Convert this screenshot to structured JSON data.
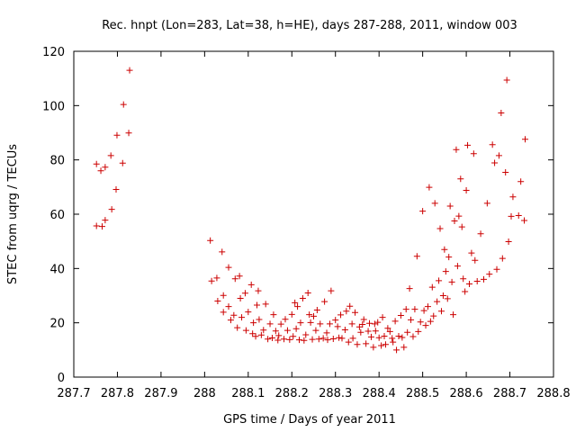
{
  "chart_data": {
    "type": "scatter",
    "title": "Rec. hnpt (Lon=283, Lat=38, h=HE), days 287-288, 2011, window 003",
    "xlabel": "GPS time / Days of year 2011",
    "ylabel": "STEC from uqrg / TECUs",
    "xlim": [
      287.7,
      288.8
    ],
    "ylim": [
      0,
      120
    ],
    "x_ticks": [
      287.7,
      287.8,
      287.9,
      288.0,
      288.1,
      288.2,
      288.3,
      288.4,
      288.5,
      288.6,
      288.7,
      288.8
    ],
    "x_tick_labels": [
      "287.7",
      "287.8",
      "287.9",
      "288",
      "288.1",
      "288.2",
      "288.3",
      "288.4",
      "288.5",
      "288.6",
      "288.7",
      "288.8"
    ],
    "y_ticks": [
      0,
      20,
      40,
      60,
      80,
      100,
      120
    ],
    "y_tick_labels": [
      "0",
      "20",
      "40",
      "60",
      "80",
      "100",
      "120"
    ],
    "grid": false,
    "marker": "+",
    "marker_color": "#cc0000",
    "series": [
      {
        "points": [
          [
            287.752,
            78.5
          ],
          [
            287.752,
            55.7
          ],
          [
            287.762,
            76.0
          ],
          [
            287.765,
            55.5
          ],
          [
            287.772,
            77.3
          ],
          [
            287.772,
            57.8
          ],
          [
            287.785,
            81.6
          ],
          [
            287.787,
            61.8
          ],
          [
            287.797,
            69.1
          ],
          [
            287.799,
            89.1
          ],
          [
            287.812,
            78.8
          ],
          [
            287.814,
            100.4
          ],
          [
            287.826,
            89.9
          ],
          [
            287.828,
            113.0
          ],
          [
            288.013,
            50.3
          ],
          [
            288.016,
            35.4
          ],
          [
            288.028,
            36.5
          ],
          [
            288.03,
            28.0
          ],
          [
            288.04,
            46.1
          ],
          [
            288.043,
            23.9
          ],
          [
            288.043,
            30.1
          ],
          [
            288.055,
            26.0
          ],
          [
            288.055,
            40.4
          ],
          [
            288.06,
            21.0
          ],
          [
            288.067,
            22.8
          ],
          [
            288.07,
            36.2
          ],
          [
            288.075,
            18.2
          ],
          [
            288.08,
            37.2
          ],
          [
            288.082,
            29.0
          ],
          [
            288.085,
            22.0
          ],
          [
            288.093,
            30.9
          ],
          [
            288.095,
            17.2
          ],
          [
            288.1,
            24.0
          ],
          [
            288.107,
            34.0
          ],
          [
            288.11,
            16.0
          ],
          [
            288.112,
            20.0
          ],
          [
            288.117,
            15.0
          ],
          [
            288.12,
            26.5
          ],
          [
            288.123,
            31.8
          ],
          [
            288.125,
            21.2
          ],
          [
            288.13,
            15.5
          ],
          [
            288.135,
            17.3
          ],
          [
            288.14,
            26.9
          ],
          [
            288.145,
            14.0
          ],
          [
            288.15,
            19.6
          ],
          [
            288.155,
            14.4
          ],
          [
            288.158,
            23.0
          ],
          [
            288.163,
            17.0
          ],
          [
            288.168,
            13.6
          ],
          [
            288.17,
            15.3
          ],
          [
            288.175,
            19.5
          ],
          [
            288.182,
            14.0
          ],
          [
            288.185,
            21.3
          ],
          [
            288.19,
            17.2
          ],
          [
            288.195,
            13.8
          ],
          [
            288.2,
            23.1
          ],
          [
            288.203,
            15.0
          ],
          [
            288.207,
            27.4
          ],
          [
            288.21,
            17.8
          ],
          [
            288.213,
            26.0
          ],
          [
            288.217,
            13.7
          ],
          [
            288.22,
            20.0
          ],
          [
            288.225,
            29.0
          ],
          [
            288.228,
            13.5
          ],
          [
            288.232,
            15.6
          ],
          [
            288.237,
            31.0
          ],
          [
            288.24,
            23.0
          ],
          [
            288.243,
            20.1
          ],
          [
            288.247,
            13.9
          ],
          [
            288.25,
            22.4
          ],
          [
            288.255,
            17.2
          ],
          [
            288.258,
            24.7
          ],
          [
            288.262,
            14.0
          ],
          [
            288.265,
            19.6
          ],
          [
            288.272,
            14.3
          ],
          [
            288.275,
            27.8
          ],
          [
            288.28,
            16.3
          ],
          [
            288.282,
            13.7
          ],
          [
            288.287,
            19.6
          ],
          [
            288.29,
            31.8
          ],
          [
            288.295,
            14.1
          ],
          [
            288.3,
            21.0
          ],
          [
            288.305,
            18.6
          ],
          [
            288.308,
            14.5
          ],
          [
            288.312,
            22.9
          ],
          [
            288.315,
            14.3
          ],
          [
            288.322,
            17.4
          ],
          [
            288.325,
            24.3
          ],
          [
            288.33,
            12.9
          ],
          [
            288.333,
            26.1
          ],
          [
            288.338,
            19.6
          ],
          [
            288.34,
            14.3
          ],
          [
            288.345,
            23.8
          ],
          [
            288.35,
            12.0
          ],
          [
            288.355,
            18.5
          ],
          [
            288.358,
            16.5
          ],
          [
            288.362,
            19.4
          ],
          [
            288.365,
            21.2
          ],
          [
            288.37,
            12.3
          ],
          [
            288.375,
            16.9
          ],
          [
            288.378,
            19.8
          ],
          [
            288.382,
            14.8
          ],
          [
            288.387,
            11.0
          ],
          [
            288.39,
            19.6
          ],
          [
            288.392,
            17.0
          ],
          [
            288.397,
            20.2
          ],
          [
            288.4,
            14.5
          ],
          [
            288.405,
            11.6
          ],
          [
            288.408,
            22.0
          ],
          [
            288.412,
            15.1
          ],
          [
            288.415,
            12.0
          ],
          [
            288.42,
            18.0
          ],
          [
            288.425,
            16.8
          ],
          [
            288.43,
            14.3
          ],
          [
            288.432,
            12.9
          ],
          [
            288.437,
            20.6
          ],
          [
            288.44,
            10.0
          ],
          [
            288.445,
            15.1
          ],
          [
            288.45,
            22.7
          ],
          [
            288.453,
            14.6
          ],
          [
            288.457,
            11.0
          ],
          [
            288.462,
            25.0
          ],
          [
            288.465,
            16.5
          ],
          [
            288.47,
            32.6
          ],
          [
            288.473,
            21.1
          ],
          [
            288.478,
            14.9
          ],
          [
            288.482,
            25.0
          ],
          [
            288.487,
            44.5
          ],
          [
            288.49,
            16.8
          ],
          [
            288.495,
            20.3
          ],
          [
            288.5,
            61.1
          ],
          [
            288.503,
            24.5
          ],
          [
            288.507,
            19.0
          ],
          [
            288.512,
            26.0
          ],
          [
            288.515,
            69.9
          ],
          [
            288.518,
            20.5
          ],
          [
            288.522,
            33.1
          ],
          [
            288.525,
            22.5
          ],
          [
            288.528,
            64.0
          ],
          [
            288.533,
            27.8
          ],
          [
            288.537,
            35.5
          ],
          [
            288.54,
            54.7
          ],
          [
            288.543,
            24.3
          ],
          [
            288.547,
            30.0
          ],
          [
            288.55,
            47.0
          ],
          [
            288.553,
            38.9
          ],
          [
            288.557,
            28.9
          ],
          [
            288.56,
            44.2
          ],
          [
            288.563,
            63.0
          ],
          [
            288.567,
            35.0
          ],
          [
            288.57,
            23.0
          ],
          [
            288.573,
            57.5
          ],
          [
            288.577,
            83.8
          ],
          [
            288.58,
            40.9
          ],
          [
            288.583,
            59.3
          ],
          [
            288.587,
            73.0
          ],
          [
            288.59,
            55.3
          ],
          [
            288.593,
            36.2
          ],
          [
            288.597,
            31.5
          ],
          [
            288.6,
            68.8
          ],
          [
            288.603,
            85.4
          ],
          [
            288.607,
            34.3
          ],
          [
            288.612,
            45.7
          ],
          [
            288.617,
            82.3
          ],
          [
            288.62,
            43.0
          ],
          [
            288.625,
            35.3
          ],
          [
            288.633,
            52.8
          ],
          [
            288.64,
            36.0
          ],
          [
            288.648,
            64.0
          ],
          [
            288.653,
            37.9
          ],
          [
            288.66,
            85.6
          ],
          [
            288.665,
            78.9
          ],
          [
            288.67,
            39.7
          ],
          [
            288.675,
            81.6
          ],
          [
            288.68,
            97.3
          ],
          [
            288.683,
            43.7
          ],
          [
            288.69,
            75.4
          ],
          [
            288.693,
            109.4
          ],
          [
            288.697,
            49.9
          ],
          [
            288.703,
            59.2
          ],
          [
            288.707,
            66.4
          ],
          [
            288.72,
            59.5
          ],
          [
            288.725,
            72.0
          ],
          [
            288.733,
            57.7
          ],
          [
            288.735,
            87.6
          ]
        ]
      }
    ]
  }
}
